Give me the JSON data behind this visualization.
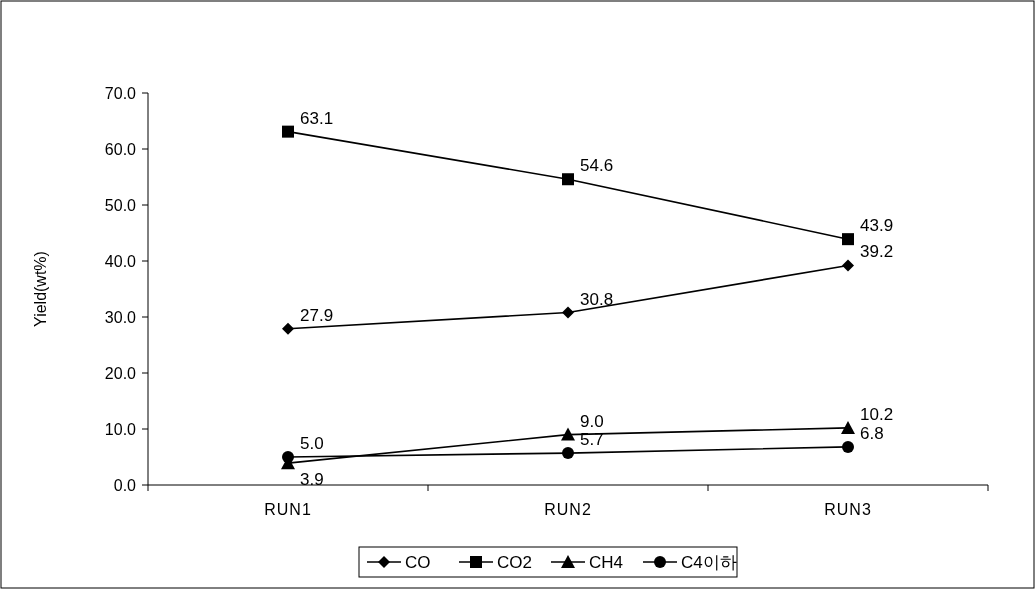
{
  "chart_data": {
    "type": "line",
    "ylabel": "Yield(wt%)",
    "categories": [
      "RUN1",
      "RUN2",
      "RUN3"
    ],
    "ylim": [
      0,
      70
    ],
    "yticks": [
      {
        "value": 0,
        "label": "0.0"
      },
      {
        "value": 10,
        "label": "10.0"
      },
      {
        "value": 20,
        "label": "20.0"
      },
      {
        "value": 30,
        "label": "30.0"
      },
      {
        "value": 40,
        "label": "40.0"
      },
      {
        "value": 50,
        "label": "50.0"
      },
      {
        "value": 60,
        "label": "60.0"
      },
      {
        "value": 70,
        "label": "70.0"
      }
    ],
    "grid": false,
    "legend": "bottom",
    "line_style": "solid",
    "series": [
      {
        "name": "CO",
        "color": "#000000",
        "marker": "diamond",
        "values": [
          27.9,
          30.8,
          39.2
        ],
        "value_labels": [
          "27.9",
          "30.8",
          "39.2"
        ]
      },
      {
        "name": "CO2",
        "color": "#000000",
        "marker": "square",
        "values": [
          63.1,
          54.6,
          43.9
        ],
        "value_labels": [
          "63.1",
          "54.6",
          "43.9"
        ]
      },
      {
        "name": "CH4",
        "color": "#000000",
        "marker": "triangle",
        "values": [
          3.9,
          9.0,
          10.2
        ],
        "value_labels": [
          "3.9",
          "9.0",
          "10.2"
        ]
      },
      {
        "name": "C4이하",
        "color": "#000000",
        "marker": "circle",
        "values": [
          5.0,
          5.7,
          6.8
        ],
        "value_labels": [
          "5.0",
          "5.7",
          "6.8"
        ]
      }
    ]
  }
}
